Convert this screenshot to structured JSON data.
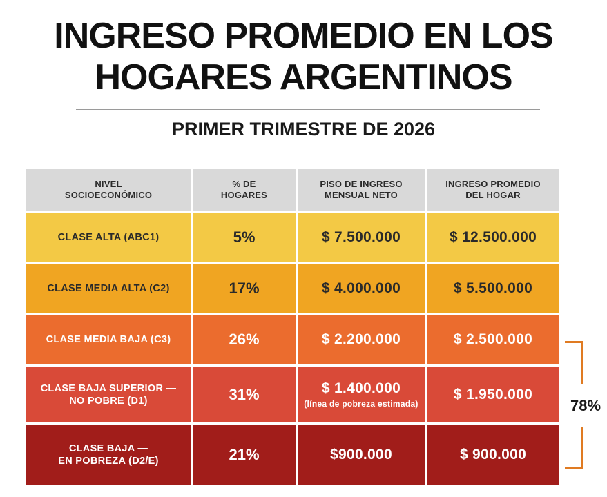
{
  "title_line1": "INGRESO PROMEDIO EN LOS",
  "title_line2": "HOGARES ARGENTINOS",
  "subtitle": "PRIMER TRIMESTRE DE 2026",
  "bracket_label": "78%",
  "chart_data": {
    "type": "table",
    "title": "INGRESO PROMEDIO EN LOS HOGARES ARGENTINOS",
    "subtitle": "PRIMER TRIMESTRE DE 2026",
    "columns": [
      "NIVEL\nSOCIOECONÓMICO",
      "% DE\nHOGARES",
      "PISO DE INGRESO\nMENSUAL NETO",
      "INGRESO PROMEDIO\nDEL HOGAR"
    ],
    "rows": [
      {
        "nivel": "CLASE ALTA (ABC1)",
        "pct": "5%",
        "piso": "$ 7.500.000",
        "piso_note": "",
        "promedio": "$ 12.500.000",
        "color": "#f3c945",
        "text_theme": "light"
      },
      {
        "nivel": "CLASE MEDIA ALTA (C2)",
        "pct": "17%",
        "piso": "$ 4.000.000",
        "piso_note": "",
        "promedio": "$ 5.500.000",
        "color": "#f0a522",
        "text_theme": "light"
      },
      {
        "nivel": "CLASE MEDIA BAJA (C3)",
        "pct": "26%",
        "piso": "$ 2.200.000",
        "piso_note": "",
        "promedio": "$ 2.500.000",
        "color": "#eb6c2e",
        "text_theme": "dark"
      },
      {
        "nivel": "CLASE BAJA SUPERIOR —\nNO POBRE (D1)",
        "pct": "31%",
        "piso": "$ 1.400.000",
        "piso_note": "(línea de pobreza estimada)",
        "promedio": "$ 1.950.000",
        "color": "#d94a38",
        "text_theme": "dark"
      },
      {
        "nivel": "CLASE BAJA —\nEN POBREZA (D2/E)",
        "pct": "21%",
        "piso": "$900.000",
        "piso_note": "",
        "promedio": "$ 900.000",
        "color": "#a11d1a",
        "text_theme": "dark"
      }
    ]
  }
}
